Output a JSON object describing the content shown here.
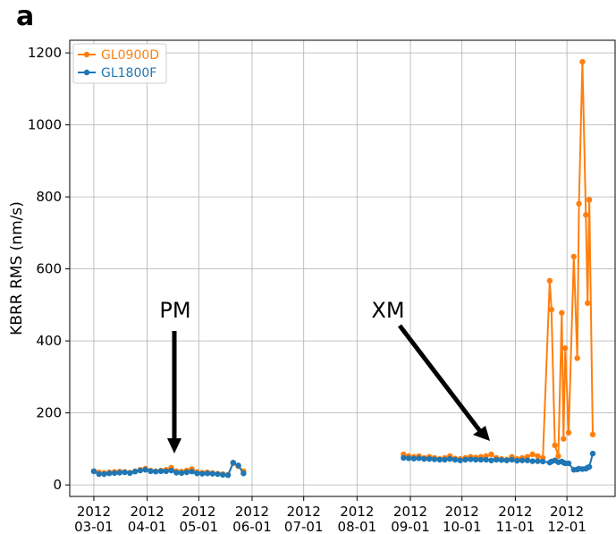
{
  "chart_data": {
    "type": "line",
    "title": "a",
    "ylabel": "KBRR RMS (nm/s)",
    "x": [
      "2012-03-01",
      "2012-03-04",
      "2012-03-07",
      "2012-03-10",
      "2012-03-13",
      "2012-03-16",
      "2012-03-19",
      "2012-03-22",
      "2012-03-25",
      "2012-03-28",
      "2012-03-31",
      "2012-04-03",
      "2012-04-06",
      "2012-04-09",
      "2012-04-12",
      "2012-04-15",
      "2012-04-18",
      "2012-04-21",
      "2012-04-24",
      "2012-04-27",
      "2012-04-30",
      "2012-05-03",
      "2012-05-06",
      "2012-05-09",
      "2012-05-12",
      "2012-05-15",
      "2012-05-18",
      "2012-05-21",
      "2012-05-24",
      "2012-05-27",
      "2012-07-15",
      "2012-08-28",
      "2012-08-31",
      "2012-09-03",
      "2012-09-06",
      "2012-09-09",
      "2012-09-12",
      "2012-09-15",
      "2012-09-18",
      "2012-09-21",
      "2012-09-24",
      "2012-09-27",
      "2012-09-30",
      "2012-10-03",
      "2012-10-06",
      "2012-10-09",
      "2012-10-12",
      "2012-10-15",
      "2012-10-18",
      "2012-10-21",
      "2012-10-24",
      "2012-10-27",
      "2012-10-30",
      "2012-11-02",
      "2012-11-05",
      "2012-11-08",
      "2012-11-11",
      "2012-11-14",
      "2012-11-17",
      "2012-11-21",
      "2012-11-22",
      "2012-11-24",
      "2012-11-26",
      "2012-11-28",
      "2012-11-29",
      "2012-11-30",
      "2012-12-02",
      "2012-12-05",
      "2012-12-07",
      "2012-12-08",
      "2012-12-10",
      "2012-12-12",
      "2012-12-13",
      "2012-12-14",
      "2012-12-16"
    ],
    "series": [
      {
        "name": "GL0900D",
        "color": "#ff7f0e",
        "values": [
          38,
          35,
          33,
          35,
          36,
          37,
          36,
          34,
          38,
          42,
          45,
          40,
          38,
          40,
          42,
          48,
          38,
          37,
          40,
          44,
          36,
          34,
          35,
          33,
          31,
          30,
          28,
          60,
          52,
          38,
          null,
          85,
          80,
          78,
          80,
          75,
          78,
          75,
          72,
          75,
          80,
          73,
          72,
          75,
          78,
          76,
          78,
          80,
          85,
          75,
          72,
          70,
          78,
          72,
          75,
          78,
          85,
          80,
          75,
          567,
          487,
          110,
          80,
          478,
          128,
          380,
          145,
          634,
          352,
          781,
          1175,
          750,
          505,
          792,
          140
        ]
      },
      {
        "name": "GL1800F",
        "color": "#1f77b4",
        "values": [
          38,
          30,
          30,
          32,
          33,
          34,
          35,
          33,
          37,
          40,
          42,
          38,
          37,
          38,
          38,
          40,
          34,
          33,
          35,
          37,
          32,
          31,
          32,
          31,
          30,
          28,
          27,
          62,
          54,
          32,
          null,
          75,
          74,
          73,
          74,
          72,
          72,
          71,
          70,
          70,
          72,
          70,
          68,
          70,
          71,
          70,
          70,
          70,
          68,
          70,
          69,
          68,
          70,
          67,
          68,
          68,
          66,
          66,
          65,
          62,
          65,
          68,
          63,
          65,
          62,
          60,
          60,
          42,
          43,
          45,
          44,
          45,
          48,
          50,
          87
        ]
      }
    ],
    "xlim": [
      "2012-02-16",
      "2012-12-29"
    ],
    "xticks": [
      {
        "value": "2012-03-01",
        "label": [
          "2012",
          "03-01"
        ]
      },
      {
        "value": "2012-04-01",
        "label": [
          "2012",
          "04-01"
        ]
      },
      {
        "value": "2012-05-01",
        "label": [
          "2012",
          "05-01"
        ]
      },
      {
        "value": "2012-06-01",
        "label": [
          "2012",
          "06-01"
        ]
      },
      {
        "value": "2012-07-01",
        "label": [
          "2012",
          "07-01"
        ]
      },
      {
        "value": "2012-08-01",
        "label": [
          "2012",
          "08-01"
        ]
      },
      {
        "value": "2012-09-01",
        "label": [
          "2012",
          "09-01"
        ]
      },
      {
        "value": "2012-10-01",
        "label": [
          "2012",
          "10-01"
        ]
      },
      {
        "value": "2012-11-01",
        "label": [
          "2012",
          "11-01"
        ]
      },
      {
        "value": "2012-12-01",
        "label": [
          "2012",
          "12-01"
        ]
      }
    ],
    "ylim": [
      -32,
      1235
    ],
    "yticks": [
      0,
      200,
      400,
      600,
      800,
      1000,
      1200
    ],
    "grid": true,
    "legend": "upper left",
    "annotations": [
      "PM",
      "XM"
    ]
  }
}
